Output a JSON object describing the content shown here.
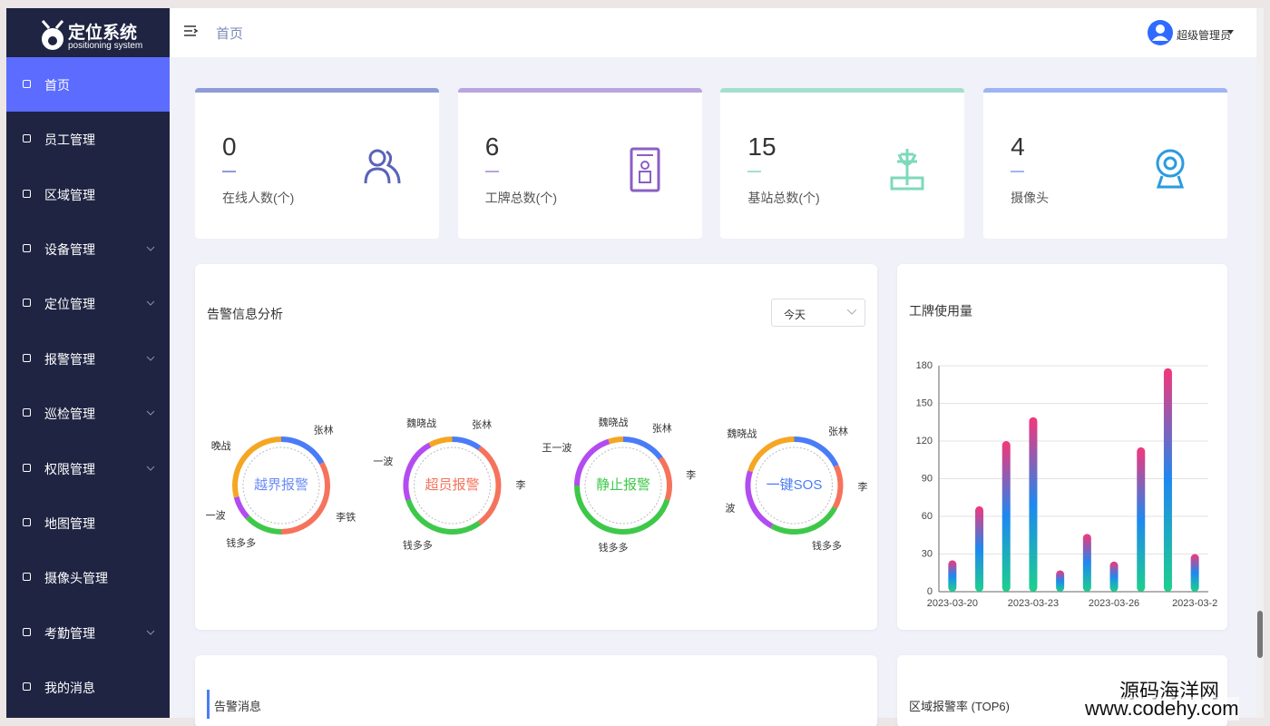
{
  "brand": {
    "title": "定位系统",
    "subtitle": "positioning system"
  },
  "menu": [
    {
      "label": "首页",
      "active": true
    },
    {
      "label": "员工管理"
    },
    {
      "label": "区域管理"
    },
    {
      "label": "设备管理",
      "submenu": true
    },
    {
      "label": "定位管理",
      "submenu": true
    },
    {
      "label": "报警管理",
      "submenu": true
    },
    {
      "label": "巡检管理",
      "submenu": true
    },
    {
      "label": "权限管理",
      "submenu": true
    },
    {
      "label": "地图管理"
    },
    {
      "label": "摄像头管理"
    },
    {
      "label": "考勤管理",
      "submenu": true
    },
    {
      "label": "我的消息"
    }
  ],
  "header": {
    "breadcrumb": "首页",
    "user": "超级管理员"
  },
  "stats": [
    {
      "value": 0,
      "label": "在线人数(个)",
      "color": "#8e9bd6",
      "icon_color": "#5a63b8"
    },
    {
      "value": 6,
      "label": "工牌总数(个)",
      "color": "#b9a5df",
      "icon_color": "#8a5fc4"
    },
    {
      "value": 15,
      "label": "基站总数(个)",
      "color": "#a3e0cc",
      "icon_color": "#7dd9bb"
    },
    {
      "value": 4,
      "label": "摄像头",
      "color": "#9eb5f5",
      "icon_color": "#2a9be0"
    }
  ],
  "alarm_panel": {
    "title": "告警信息分析",
    "filter": "今天"
  },
  "chart_data": [
    {
      "type": "pie",
      "title": "越界报警",
      "title_color": "#6b8cf5",
      "categories": [
        "张林",
        "李铁",
        "钱多多",
        "一波",
        "晚战"
      ],
      "values": [
        17,
        33,
        13,
        8,
        29
      ],
      "colors": [
        "#4a7cf7",
        "#f5735c",
        "#3ec84a",
        "#b34cf0",
        "#f5a623"
      ]
    },
    {
      "type": "pie",
      "title": "超员报警",
      "title_color": "#f5735c",
      "categories": [
        "张林",
        "李",
        "钱多多",
        "一波",
        "魏晓战"
      ],
      "values": [
        10,
        30,
        30,
        22,
        8
      ],
      "colors": [
        "#4a7cf7",
        "#f5735c",
        "#3ec84a",
        "#b34cf0",
        "#f5a623"
      ]
    },
    {
      "type": "pie",
      "title": "静止报警",
      "title_color": "#3ec84a",
      "categories": [
        "张林",
        "李",
        "钱多多",
        "王一波",
        "魏晓战"
      ],
      "values": [
        15,
        15,
        45,
        20,
        5
      ],
      "colors": [
        "#4a7cf7",
        "#f5735c",
        "#3ec84a",
        "#b34cf0",
        "#f5a623"
      ]
    },
    {
      "type": "pie",
      "title": "一键SOS",
      "title_color": "#4a7cf7",
      "categories": [
        "张林",
        "李",
        "钱多多",
        "波",
        "魏晓战"
      ],
      "values": [
        18,
        15,
        25,
        22,
        20
      ],
      "colors": [
        "#4a7cf7",
        "#f5735c",
        "#3ec84a",
        "#b34cf0",
        "#f5a623"
      ]
    },
    {
      "type": "bar",
      "title": "工牌使用量",
      "categories": [
        "2023-03-20",
        null,
        null,
        "2023-03-23",
        null,
        null,
        "2023-03-26",
        null,
        null,
        "2023-03-2"
      ],
      "values": [
        25,
        68,
        120,
        139,
        17,
        46,
        24,
        115,
        178,
        30
      ],
      "colors": [
        "#f5367a",
        "#1e88f0",
        "#1dd08c"
      ],
      "ylim": [
        0,
        180
      ],
      "yticks": [
        0,
        30,
        60,
        90,
        120,
        150,
        180
      ],
      "grid": true
    }
  ],
  "alarm_messages": {
    "title": "告警消息"
  },
  "region_rate": {
    "title": "区域报警率 (TOP6)"
  },
  "watermark": {
    "name": "源码海洋网",
    "url": "www.codehy.com"
  }
}
